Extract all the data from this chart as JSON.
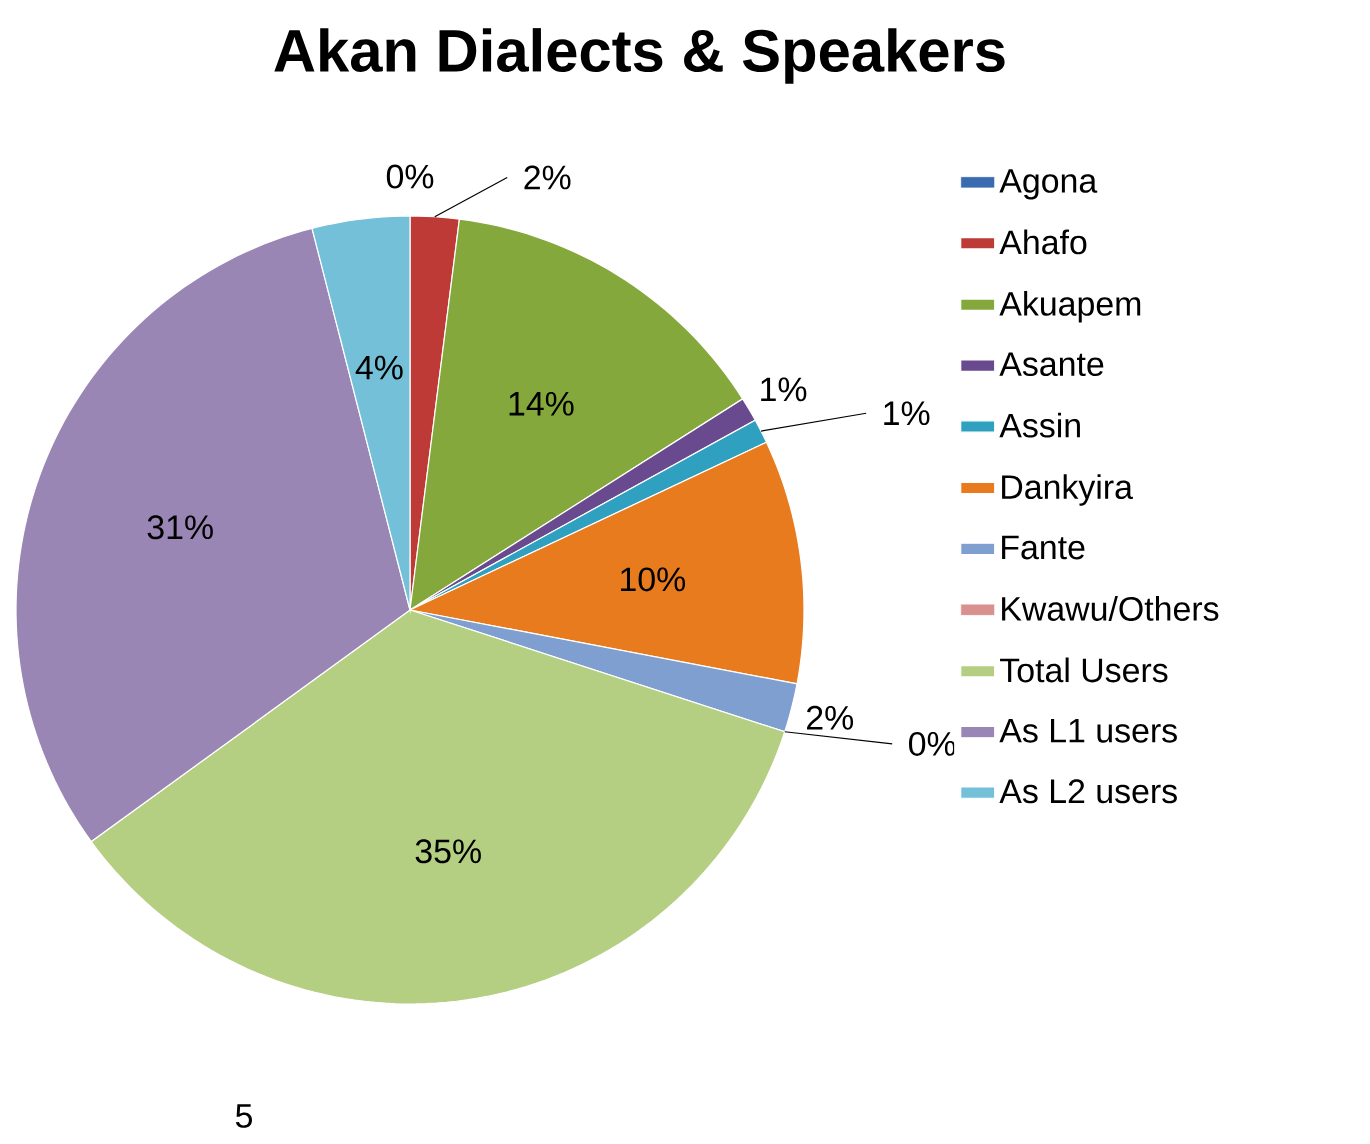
{
  "chart_data": {
    "type": "pie",
    "title": "Akan Dialects & Speakers",
    "categories": [
      "Agona",
      "Ahafo",
      "Akuapem",
      "Asante",
      "Assin",
      "Dankyira",
      "Fante",
      "Kwawu/Others",
      "Total Users",
      "As L1 users",
      "As L2 users"
    ],
    "values": [
      0,
      2,
      14,
      1,
      1,
      10,
      2,
      0,
      35,
      31,
      4
    ],
    "value_labels": [
      "0%",
      "2%",
      "14%",
      "1%",
      "1%",
      "10%",
      "2%",
      "0%",
      "35%",
      "31%",
      "4%"
    ],
    "colors": [
      "#3a6ab0",
      "#be3a36",
      "#84a83c",
      "#6a4a8e",
      "#2fa0bf",
      "#e87b1e",
      "#7f9fd0",
      "#d9918f",
      "#b5cf82",
      "#9a86b5",
      "#74c0d8"
    ],
    "legend": "right",
    "annotations": [
      "5"
    ]
  }
}
